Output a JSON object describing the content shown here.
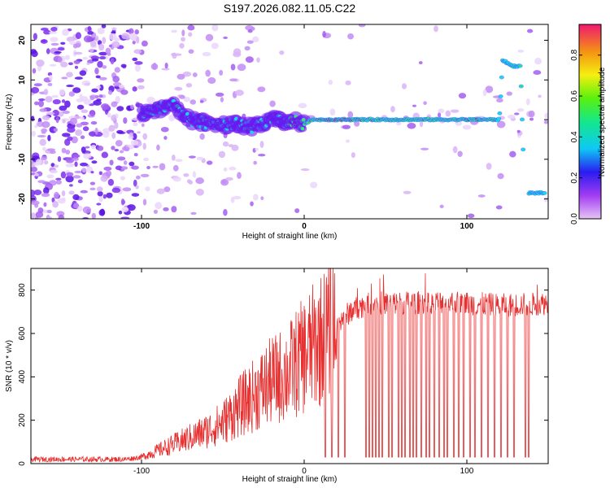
{
  "title": "S197.2026.082.11.05.C22",
  "chart_data": [
    {
      "type": "heatmap",
      "name": "spectrogram",
      "xlabel": "Height of straight line (km)",
      "ylabel": "Frequency (Hz)",
      "xlim": [
        -168,
        150
      ],
      "ylim": [
        -25,
        24
      ],
      "xticks": [
        -100,
        0,
        100
      ],
      "yticks": [
        -20,
        -10,
        0,
        10,
        20
      ],
      "colorbar": {
        "label": "Normalized spectral amplitude",
        "range": [
          0,
          0.95
        ],
        "ticks": [
          "0.0",
          "0.2",
          "0.4",
          "0.6",
          "0.8"
        ],
        "tick_values": [
          0,
          0.2,
          0.4,
          0.6,
          0.8
        ]
      },
      "signal_track": [
        {
          "x": -100,
          "y": 1.5
        },
        {
          "x": -90,
          "y": 3
        },
        {
          "x": -80,
          "y": 4
        },
        {
          "x": -72,
          "y": 0
        },
        {
          "x": -60,
          "y": -1
        },
        {
          "x": -45,
          "y": -1
        },
        {
          "x": -30,
          "y": -2
        },
        {
          "x": -20,
          "y": 0
        },
        {
          "x": -10,
          "y": -0.5
        },
        {
          "x": 0,
          "y": -1
        },
        {
          "x": 5,
          "y": 0
        },
        {
          "x": 25,
          "y": 0
        },
        {
          "x": 120,
          "y": 0
        },
        {
          "x": 122,
          "y": 15
        },
        {
          "x": 128,
          "y": 13.5
        },
        {
          "x": 133,
          "y": 13.5
        },
        {
          "x": 135,
          "y": -13
        },
        {
          "x": 138,
          "y": -18.5
        },
        {
          "x": 148,
          "y": -18.5
        }
      ]
    },
    {
      "type": "line",
      "name": "snr",
      "xlabel": "Height of straight line (km)",
      "ylabel": "SNR (10 * v/v)",
      "xlim": [
        -168,
        150
      ],
      "ylim": [
        0,
        900
      ],
      "xticks": [
        -100,
        0,
        100
      ],
      "yticks": [
        0,
        200,
        400,
        600,
        800
      ],
      "color": "#e83030",
      "series_envelope": [
        {
          "x": -168,
          "y": 20
        },
        {
          "x": -110,
          "y": 20
        },
        {
          "x": -100,
          "y": 30
        },
        {
          "x": -90,
          "y": 60
        },
        {
          "x": -80,
          "y": 90
        },
        {
          "x": -70,
          "y": 120
        },
        {
          "x": -60,
          "y": 150
        },
        {
          "x": -50,
          "y": 190
        },
        {
          "x": -40,
          "y": 260
        },
        {
          "x": -30,
          "y": 320
        },
        {
          "x": -20,
          "y": 380
        },
        {
          "x": -10,
          "y": 420
        },
        {
          "x": 0,
          "y": 500
        },
        {
          "x": 10,
          "y": 570
        },
        {
          "x": 20,
          "y": 650
        },
        {
          "x": 30,
          "y": 710
        },
        {
          "x": 40,
          "y": 740
        },
        {
          "x": 60,
          "y": 740
        },
        {
          "x": 80,
          "y": 745
        },
        {
          "x": 100,
          "y": 740
        },
        {
          "x": 120,
          "y": 730
        },
        {
          "x": 140,
          "y": 735
        },
        {
          "x": 150,
          "y": 740
        }
      ],
      "dropouts_x": [
        13,
        17,
        21,
        25,
        38,
        40,
        42,
        44,
        46,
        48,
        52,
        54,
        58,
        60,
        62,
        65,
        67,
        69,
        72,
        75,
        77,
        80,
        83,
        86,
        88,
        92,
        95,
        98,
        102,
        105,
        109,
        113,
        117,
        121,
        125,
        129,
        136,
        138
      ],
      "dropout_y": 30
    }
  ]
}
